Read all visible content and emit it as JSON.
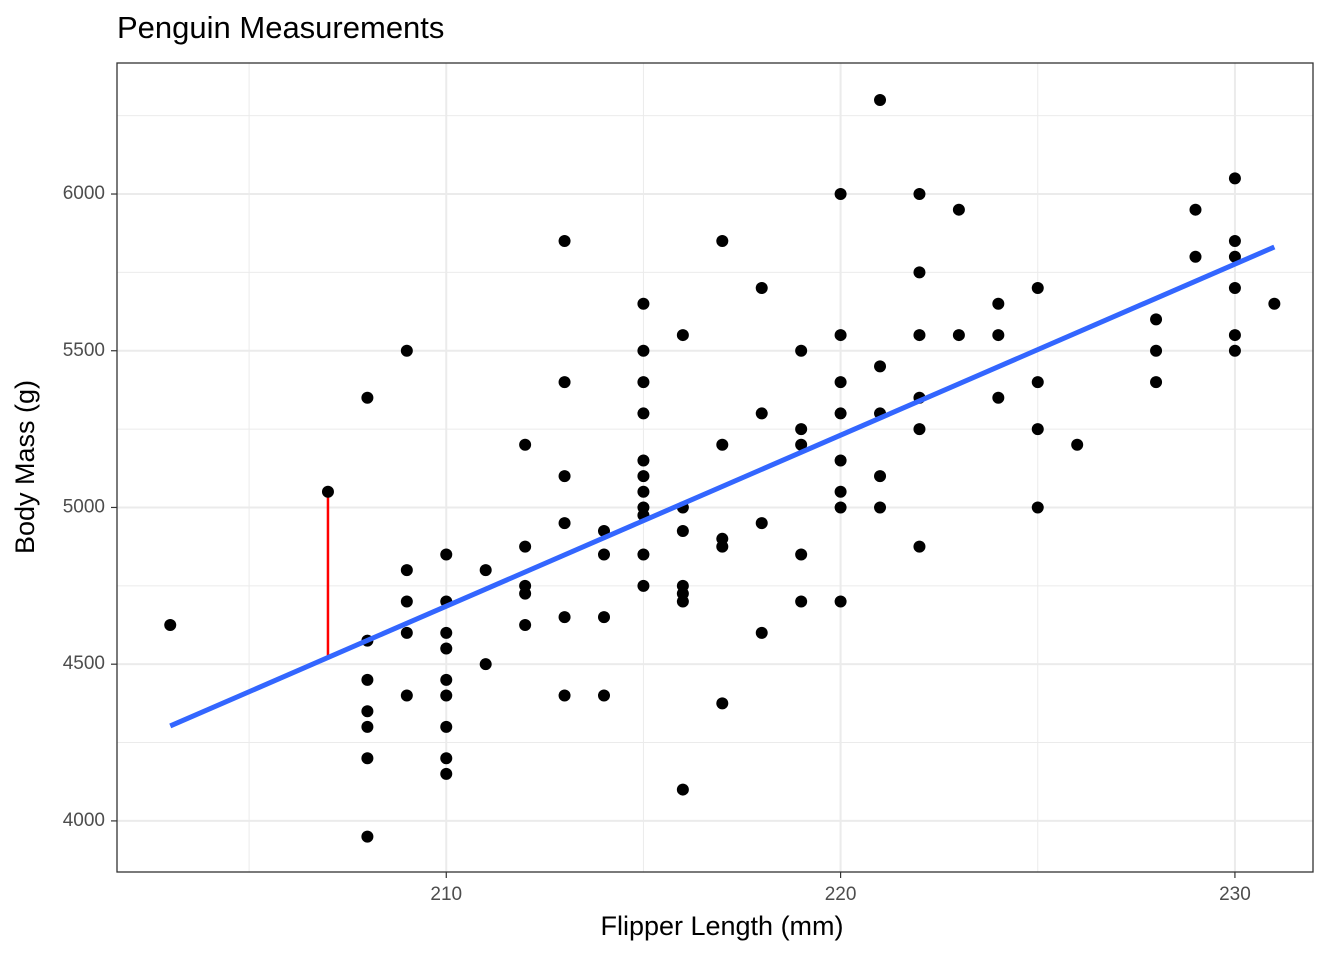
{
  "chart_data": {
    "type": "scatter",
    "title": "Penguin Measurements",
    "x_label": "Flipper Length (mm)",
    "y_label": "Body Mass (g)",
    "x": [
      203,
      207,
      208,
      208,
      208,
      208,
      208,
      208,
      208,
      209,
      209,
      209,
      209,
      209,
      210,
      210,
      210,
      210,
      210,
      210,
      210,
      210,
      210,
      211,
      211,
      212,
      212,
      212,
      212,
      212,
      213,
      213,
      213,
      213,
      213,
      213,
      214,
      214,
      214,
      214,
      215,
      215,
      215,
      215,
      215,
      215,
      215,
      215,
      215,
      215,
      215,
      216,
      216,
      216,
      216,
      216,
      216,
      216,
      217,
      217,
      217,
      217,
      217,
      218,
      218,
      218,
      218,
      219,
      219,
      219,
      219,
      219,
      220,
      220,
      220,
      220,
      220,
      220,
      220,
      220,
      221,
      221,
      221,
      221,
      221,
      222,
      222,
      222,
      222,
      222,
      222,
      223,
      223,
      224,
      224,
      224,
      225,
      225,
      225,
      225,
      226,
      228,
      228,
      228,
      229,
      229,
      230,
      230,
      230,
      230,
      230,
      230,
      231
    ],
    "y": [
      4625,
      5050,
      5350,
      4575,
      4450,
      4350,
      4300,
      4200,
      3950,
      5500,
      4800,
      4700,
      4600,
      4400,
      4850,
      4700,
      4600,
      4550,
      4450,
      4400,
      4300,
      4200,
      4150,
      4800,
      4500,
      5200,
      4875,
      4750,
      4725,
      4625,
      5850,
      5400,
      5100,
      4950,
      4650,
      4400,
      4925,
      4850,
      4650,
      4400,
      5650,
      5500,
      5400,
      5300,
      5150,
      5100,
      5050,
      5000,
      4975,
      4850,
      4750,
      5550,
      5000,
      4925,
      4750,
      4725,
      4700,
      4100,
      5850,
      5200,
      4900,
      4875,
      4375,
      5700,
      5300,
      4950,
      4600,
      5500,
      5250,
      5200,
      4850,
      4700,
      6000,
      5550,
      5400,
      5300,
      5150,
      5050,
      5000,
      4700,
      6300,
      5450,
      5300,
      5100,
      5000,
      6000,
      5750,
      5550,
      5350,
      5250,
      4875,
      5950,
      5550,
      5650,
      5550,
      5350,
      5700,
      5400,
      5250,
      5000,
      5200,
      5600,
      5500,
      5400,
      5950,
      5800,
      6050,
      5850,
      5800,
      5700,
      5550,
      5500,
      5650
    ],
    "color": "#000000",
    "fit": {
      "x": [
        203,
        231
      ],
      "y": [
        4303,
        5831
      ],
      "color": "#3366ff"
    },
    "segments": [
      {
        "x": 207,
        "y_start": 5050,
        "y_end": 4523,
        "color": "#ff0000"
      }
    ],
    "xlim": [
      201.65,
      231.98
    ],
    "ylim": [
      3837,
      6418
    ],
    "xticks": [
      210,
      220,
      230
    ],
    "yticks": [
      4000,
      4500,
      5000,
      5500,
      6000
    ],
    "xminor": [
      205,
      215,
      225
    ],
    "yminor": [
      4250,
      4750,
      5250,
      5750,
      6250
    ],
    "grid": true
  }
}
